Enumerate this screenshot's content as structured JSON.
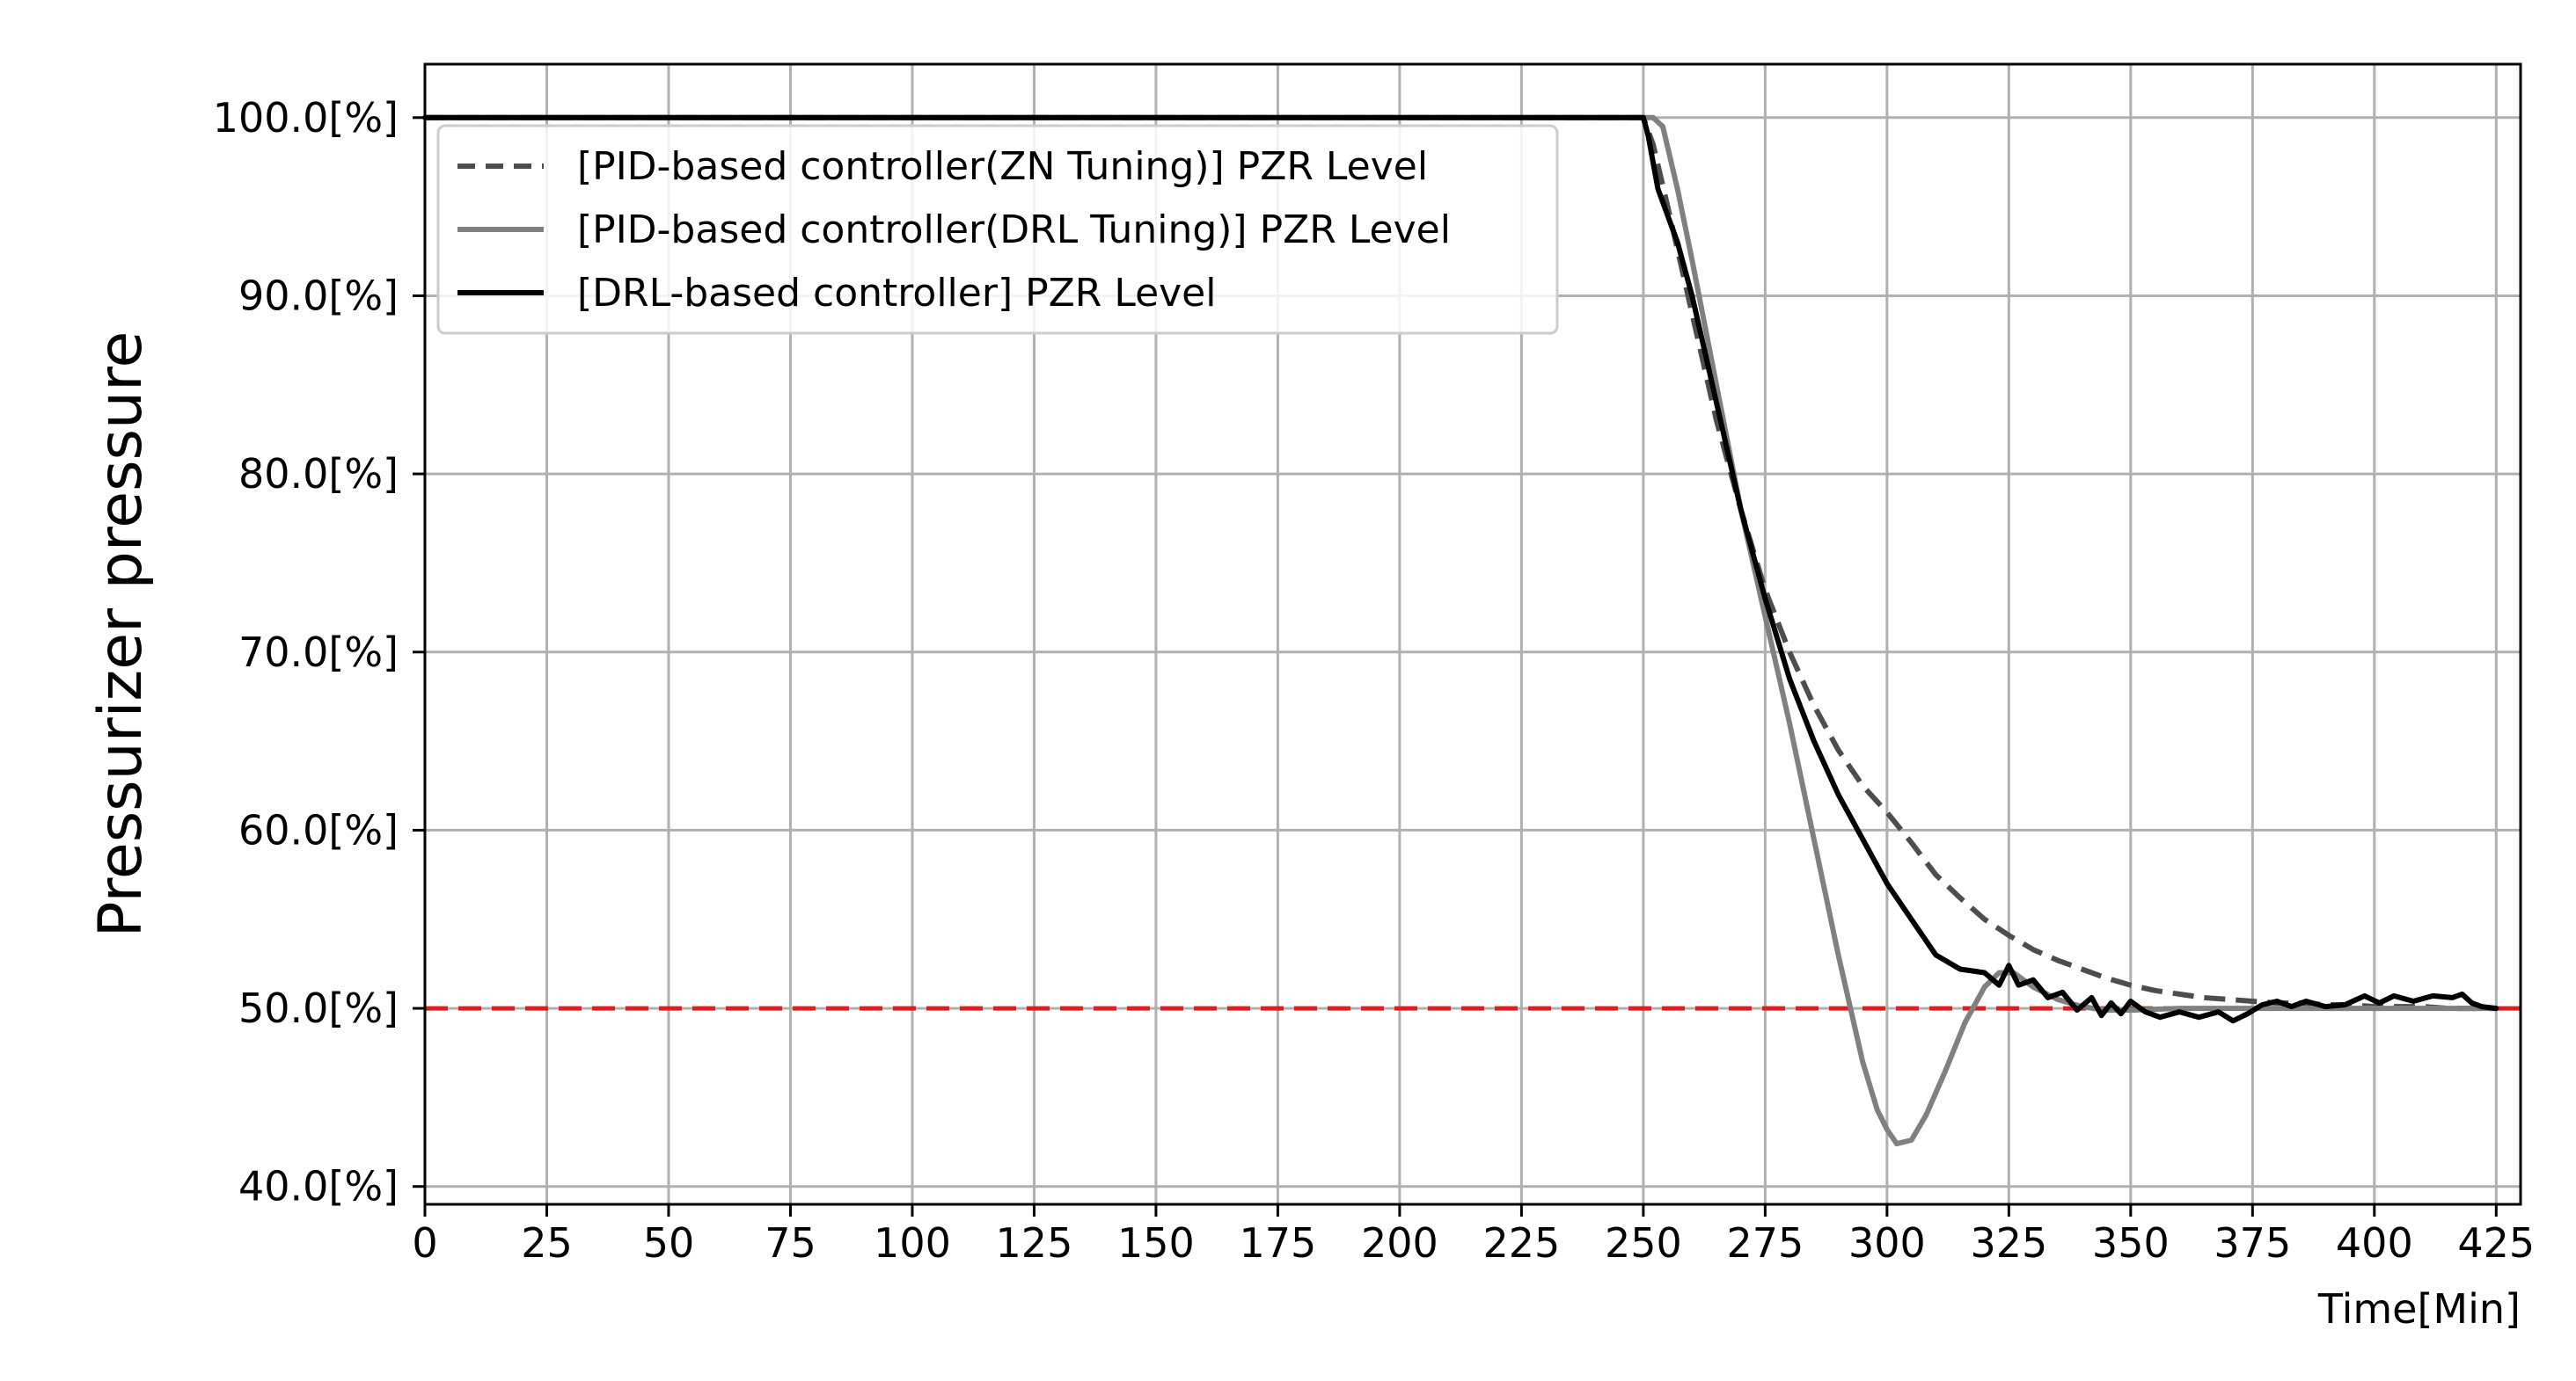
{
  "chart_data": {
    "type": "line",
    "title": "",
    "xlabel": "Time[Min]",
    "ylabel": "Pressurizer pressure",
    "xlim": [
      0,
      430
    ],
    "ylim": [
      39,
      103
    ],
    "grid": true,
    "legend": "top-left",
    "x_ticks": [
      0,
      25,
      50,
      75,
      100,
      125,
      150,
      175,
      200,
      225,
      250,
      275,
      300,
      325,
      350,
      375,
      400,
      425
    ],
    "x_tick_labels": [
      "0",
      "25",
      "50",
      "75",
      "100",
      "125",
      "150",
      "175",
      "200",
      "225",
      "250",
      "275",
      "300",
      "325",
      "350",
      "375",
      "400",
      "425"
    ],
    "y_ticks": [
      40,
      50,
      60,
      70,
      80,
      90,
      100
    ],
    "y_tick_labels": [
      "40.0[%]",
      "50.0[%]",
      "60.0[%]",
      "70.0[%]",
      "80.0[%]",
      "90.0[%]",
      "100.0[%]"
    ],
    "reference_line": {
      "y": 50,
      "color": "#e8191c",
      "style": "dashed"
    },
    "series": [
      {
        "name": "[PID-based controller(ZN Tuning)] PZR Level",
        "color": "#4d4d4d",
        "style": "dashed",
        "x": [
          0,
          250,
          252,
          255,
          260,
          265,
          270,
          275,
          280,
          285,
          290,
          295,
          300,
          305,
          310,
          315,
          320,
          325,
          330,
          335,
          340,
          345,
          350,
          355,
          360,
          365,
          370,
          375,
          380,
          385,
          390,
          395,
          400,
          405,
          410,
          415,
          420,
          425
        ],
        "y": [
          100,
          100,
          98.5,
          95,
          89,
          83,
          78,
          73.5,
          70,
          67,
          64.5,
          62.5,
          61,
          59.3,
          57.5,
          56.2,
          55,
          54.1,
          53.3,
          52.7,
          52.2,
          51.7,
          51.3,
          51,
          50.8,
          50.6,
          50.5,
          50.4,
          50.3,
          50.3,
          50.2,
          50.2,
          50.1,
          50.1,
          50.1,
          50,
          50,
          50
        ]
      },
      {
        "name": "[PID-based controller(DRL Tuning)] PZR Level",
        "color": "#808080",
        "style": "solid",
        "x": [
          0,
          252,
          254,
          257,
          260,
          265,
          270,
          275,
          280,
          285,
          290,
          295,
          298,
          300,
          302,
          305,
          308,
          312,
          316,
          320,
          323,
          326,
          330,
          335,
          340,
          345,
          350,
          360,
          370,
          380,
          390,
          400,
          410,
          420,
          425
        ],
        "y": [
          100,
          100,
          99.5,
          96,
          92,
          85,
          78,
          72,
          66,
          59.5,
          53,
          47,
          44.3,
          43.2,
          42.4,
          42.6,
          44,
          46.5,
          49.2,
          51.2,
          52,
          52,
          51.2,
          50.5,
          50.1,
          49.9,
          49.9,
          50,
          50,
          50,
          50,
          50,
          50,
          50,
          50
        ]
      },
      {
        "name": "[DRL-based controller] PZR Level",
        "color": "#000000",
        "style": "solid",
        "x": [
          0,
          250,
          251,
          253,
          255,
          257,
          260,
          265,
          270,
          275,
          280,
          285,
          290,
          295,
          300,
          305,
          310,
          315,
          320,
          323,
          325,
          327,
          330,
          333,
          336,
          339,
          342,
          344,
          346,
          348,
          350,
          353,
          356,
          360,
          364,
          368,
          371,
          374,
          377,
          380,
          383,
          386,
          390,
          394,
          398,
          401,
          404,
          408,
          412,
          416,
          418,
          420,
          422,
          425
        ],
        "y": [
          100,
          100,
          99,
          96,
          94.5,
          93,
          90,
          84,
          78,
          73,
          68.5,
          65,
          62,
          59.5,
          57,
          55,
          53,
          52.2,
          52,
          51.3,
          52.4,
          51.3,
          51.6,
          50.6,
          50.9,
          49.9,
          50.6,
          49.6,
          50.3,
          49.7,
          50.4,
          49.8,
          49.5,
          49.8,
          49.5,
          49.8,
          49.3,
          49.7,
          50.2,
          50.4,
          50.1,
          50.4,
          50.1,
          50.2,
          50.7,
          50.3,
          50.7,
          50.4,
          50.7,
          50.6,
          50.8,
          50.3,
          50.1,
          50
        ]
      }
    ]
  }
}
